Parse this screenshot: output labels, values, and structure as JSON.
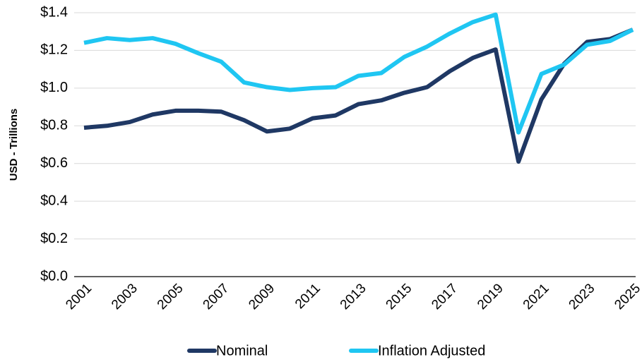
{
  "chart_data": {
    "type": "line",
    "ylabel": "USD - Trillions",
    "categories": [
      "2001",
      null,
      "2003",
      null,
      "2005",
      null,
      "2007",
      null,
      "2009",
      null,
      "2011",
      null,
      "2013",
      null,
      "2015",
      null,
      "2017",
      null,
      "2019",
      null,
      "2021",
      null,
      "2023",
      null,
      "2025"
    ],
    "series": [
      {
        "name": "Nominal",
        "color": "#1f3864",
        "values": [
          0.79,
          0.8,
          0.82,
          0.86,
          0.88,
          0.88,
          0.875,
          0.83,
          0.77,
          0.785,
          0.84,
          0.855,
          0.915,
          0.935,
          0.975,
          1.005,
          1.09,
          1.16,
          1.205,
          0.61,
          0.94,
          1.13,
          1.245,
          1.26,
          1.31
        ]
      },
      {
        "name": "Inflation Adjusted",
        "color": "#1fc6f2",
        "values": [
          1.24,
          1.265,
          1.255,
          1.265,
          1.235,
          1.185,
          1.14,
          1.03,
          1.005,
          0.99,
          1.0,
          1.005,
          1.065,
          1.08,
          1.165,
          1.22,
          1.29,
          1.35,
          1.39,
          0.765,
          1.075,
          1.125,
          1.23,
          1.25,
          1.31
        ]
      }
    ],
    "ylim": [
      0,
      1.4
    ],
    "yticks": [
      {
        "value": 0,
        "label": "$0.0"
      },
      {
        "value": 0.2,
        "label": "$0.2"
      },
      {
        "value": 0.4,
        "label": "$0.4"
      },
      {
        "value": 0.6,
        "label": "$0.6"
      },
      {
        "value": 0.8,
        "label": "$0.8"
      },
      {
        "value": 1.0,
        "label": "$1.0"
      },
      {
        "value": 1.2,
        "label": "$1.2"
      },
      {
        "value": 1.4,
        "label": "$1.4"
      }
    ],
    "grid": true,
    "legend": "bottom"
  }
}
